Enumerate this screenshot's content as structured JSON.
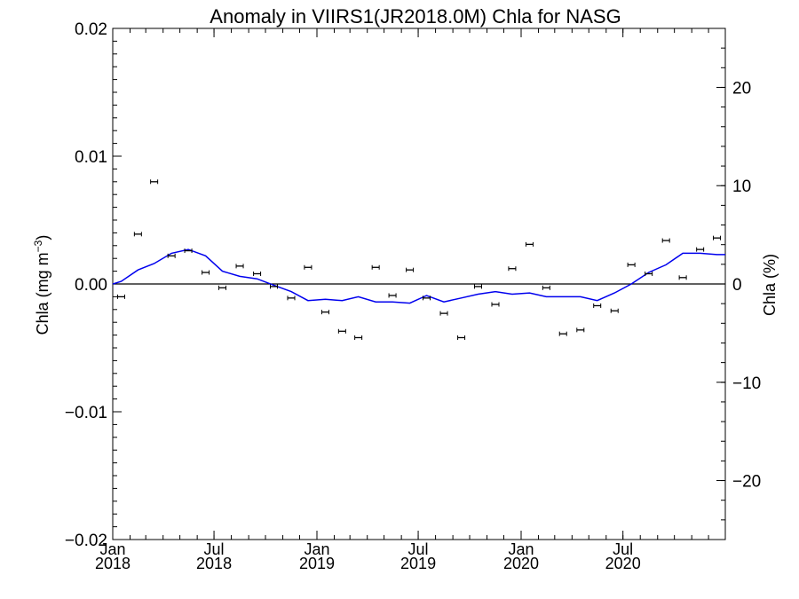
{
  "chart_data": {
    "type": "scatter",
    "title": "Anomaly in VIIRS1(JR2018.0M) Chla for NASG",
    "ylabel_left": "Chla (mg m⁻³)",
    "ylabel_right": "Chla (%)",
    "xlabel": "",
    "x_range": [
      "2018-01-01",
      "2020-12-31"
    ],
    "ylim_left": [
      -0.02,
      0.02
    ],
    "ylim_right": [
      -26,
      26
    ],
    "x_ticks": [
      {
        "date": "2018-01-01",
        "month": "Jan",
        "year": "2018"
      },
      {
        "date": "2018-07-01",
        "month": "Jul",
        "year": "2018"
      },
      {
        "date": "2019-01-01",
        "month": "Jan",
        "year": "2019"
      },
      {
        "date": "2019-07-01",
        "month": "Jul",
        "year": "2019"
      },
      {
        "date": "2020-01-01",
        "month": "Jan",
        "year": "2020"
      },
      {
        "date": "2020-07-01",
        "month": "Jul",
        "year": "2020"
      }
    ],
    "y_ticks_left": [
      {
        "value": 0.02,
        "label": "0.02"
      },
      {
        "value": 0.01,
        "label": "0.01"
      },
      {
        "value": 0.0,
        "label": "0.00"
      },
      {
        "value": -0.01,
        "label": "−0.01"
      },
      {
        "value": -0.02,
        "label": "−0.02"
      }
    ],
    "y_ticks_right": [
      {
        "value": 20,
        "label": "20"
      },
      {
        "value": 10,
        "label": "10"
      },
      {
        "value": 0,
        "label": "0"
      },
      {
        "value": -10,
        "label": "−10"
      },
      {
        "value": -20,
        "label": "−20"
      }
    ],
    "reference_line": 0.0,
    "grid": false,
    "legend": "none",
    "series": [
      {
        "marker": "point-with-error-bar",
        "color": "#000000",
        "axis": "left",
        "x": [
          "2018-01-16",
          "2018-02-15",
          "2018-03-16",
          "2018-04-16",
          "2018-05-16",
          "2018-06-16",
          "2018-07-16",
          "2018-08-16",
          "2018-09-16",
          "2018-10-16",
          "2018-11-16",
          "2018-12-16",
          "2019-01-16",
          "2019-02-15",
          "2019-03-16",
          "2019-04-16",
          "2019-05-16",
          "2019-06-16",
          "2019-07-16",
          "2019-08-16",
          "2019-09-16",
          "2019-10-16",
          "2019-11-16",
          "2019-12-16",
          "2020-01-16",
          "2020-02-15",
          "2020-03-16",
          "2020-04-16",
          "2020-05-16",
          "2020-06-16",
          "2020-07-16",
          "2020-08-16",
          "2020-09-16",
          "2020-10-16",
          "2020-11-16",
          "2020-12-16"
        ],
        "y": [
          -0.001,
          0.0039,
          0.008,
          0.0022,
          0.0026,
          0.0009,
          -0.0003,
          0.0014,
          0.0008,
          -0.0002,
          -0.0011,
          0.0013,
          -0.0022,
          -0.0037,
          -0.0042,
          0.0013,
          -0.0009,
          0.0011,
          -0.0011,
          -0.0023,
          -0.0042,
          -0.0002,
          -0.0016,
          0.0012,
          0.0031,
          -0.0003,
          -0.0039,
          -0.0036,
          -0.0017,
          -0.0021,
          0.0015,
          0.0008,
          0.0034,
          0.0005,
          0.0027,
          0.0036
        ],
        "error": 0.0001
      },
      {
        "marker": "line",
        "color": "#0000ee",
        "axis": "left",
        "x": [
          "2018-01-01",
          "2018-01-16",
          "2018-02-15",
          "2018-03-16",
          "2018-04-16",
          "2018-05-16",
          "2018-06-16",
          "2018-07-16",
          "2018-08-16",
          "2018-09-16",
          "2018-10-16",
          "2018-11-16",
          "2018-12-16",
          "2019-01-16",
          "2019-02-15",
          "2019-03-16",
          "2019-04-16",
          "2019-05-16",
          "2019-06-16",
          "2019-07-16",
          "2019-08-16",
          "2019-09-16",
          "2019-10-16",
          "2019-11-16",
          "2019-12-16",
          "2020-01-16",
          "2020-02-15",
          "2020-03-16",
          "2020-04-16",
          "2020-05-16",
          "2020-06-16",
          "2020-07-16",
          "2020-08-16",
          "2020-09-16",
          "2020-10-16",
          "2020-11-16",
          "2020-12-16",
          "2020-12-31"
        ],
        "y": [
          0.0,
          0.0002,
          0.0011,
          0.0016,
          0.0024,
          0.0027,
          0.0022,
          0.001,
          0.0006,
          0.0004,
          -0.0001,
          -0.0006,
          -0.0013,
          -0.0012,
          -0.0013,
          -0.001,
          -0.0014,
          -0.0014,
          -0.0015,
          -0.0009,
          -0.0014,
          -0.0011,
          -0.0008,
          -0.0006,
          -0.0008,
          -0.0007,
          -0.001,
          -0.001,
          -0.001,
          -0.0013,
          -0.0007,
          0.0,
          0.0009,
          0.0015,
          0.0024,
          0.0024,
          0.0023,
          0.0023
        ]
      }
    ]
  }
}
